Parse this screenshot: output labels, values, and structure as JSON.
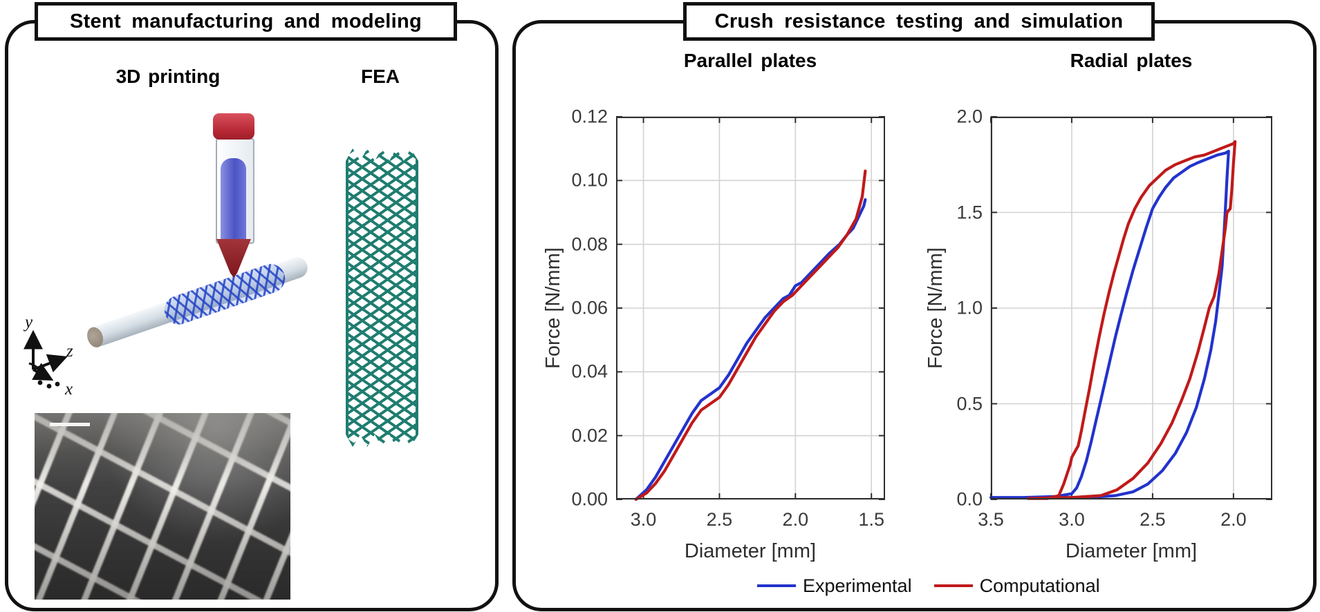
{
  "left_panel": {
    "title": "Stent manufacturing and modeling",
    "printing_heading": "3D printing",
    "fea_heading": "FEA",
    "axis_triad": {
      "x": "x",
      "y": "y",
      "z": "z"
    }
  },
  "right_panel": {
    "title": "Crush resistance testing and simulation"
  },
  "legend": {
    "items": [
      {
        "label": "Experimental",
        "color": "#2333cc"
      },
      {
        "label": "Computational",
        "color": "#c01a1a"
      }
    ]
  },
  "colors": {
    "experimental_blue": "#2333cc",
    "computational_red": "#c01a1a",
    "stent_teal": "#1f7d70",
    "grid_gray": "#d2d2d2",
    "axis_gray": "#2f2f2f",
    "syringe_cap_red": "#c9303c",
    "syringe_nozzle_maroon": "#8e2026",
    "syringe_ink_blue": "#5a62cf",
    "printed_mesh_blue": "#3b5ac6"
  },
  "chart_data": [
    {
      "type": "line",
      "title": "Parallel plates",
      "xlabel": "Diameter [mm]",
      "ylabel": "Force [N/mm]",
      "x_axis_reversed": true,
      "xlim": [
        3.18,
        1.41
      ],
      "ylim": [
        0,
        0.12
      ],
      "xticks": {
        "values": [
          3.0,
          2.5,
          2.0,
          1.5
        ],
        "labels": [
          "3.0",
          "2.5",
          "2.0",
          "1.5"
        ]
      },
      "yticks": {
        "values": [
          0,
          0.02,
          0.04,
          0.06,
          0.08,
          0.1,
          0.12
        ],
        "labels": [
          "0.00",
          "0.02",
          "0.04",
          "0.06",
          "0.08",
          "0.10",
          "0.12"
        ]
      },
      "grid": true,
      "legend_position": "below",
      "series": [
        {
          "name": "Experimental",
          "color": "#2333cc",
          "points": [
            [
              3.05,
              0
            ],
            [
              2.98,
              0.003
            ],
            [
              2.92,
              0.007
            ],
            [
              2.86,
              0.012
            ],
            [
              2.8,
              0.017
            ],
            [
              2.74,
              0.022
            ],
            [
              2.68,
              0.027
            ],
            [
              2.62,
              0.031
            ],
            [
              2.56,
              0.033
            ],
            [
              2.5,
              0.035
            ],
            [
              2.44,
              0.039
            ],
            [
              2.38,
              0.044
            ],
            [
              2.32,
              0.049
            ],
            [
              2.26,
              0.053
            ],
            [
              2.2,
              0.057
            ],
            [
              2.14,
              0.06
            ],
            [
              2.08,
              0.063
            ],
            [
              2.04,
              0.064
            ],
            [
              2.0,
              0.067
            ],
            [
              1.96,
              0.068
            ],
            [
              1.9,
              0.071
            ],
            [
              1.84,
              0.074
            ],
            [
              1.78,
              0.077
            ],
            [
              1.71,
              0.08
            ],
            [
              1.66,
              0.083
            ],
            [
              1.62,
              0.085
            ],
            [
              1.58,
              0.089
            ],
            [
              1.55,
              0.092
            ],
            [
              1.54,
              0.094
            ]
          ]
        },
        {
          "name": "Computational",
          "color": "#c01a1a",
          "points": [
            [
              3.05,
              0
            ],
            [
              2.98,
              0.002
            ],
            [
              2.92,
              0.005
            ],
            [
              2.86,
              0.009
            ],
            [
              2.8,
              0.014
            ],
            [
              2.74,
              0.019
            ],
            [
              2.68,
              0.024
            ],
            [
              2.62,
              0.028
            ],
            [
              2.56,
              0.03
            ],
            [
              2.5,
              0.032
            ],
            [
              2.44,
              0.036
            ],
            [
              2.38,
              0.041
            ],
            [
              2.32,
              0.046
            ],
            [
              2.26,
              0.051
            ],
            [
              2.2,
              0.055
            ],
            [
              2.14,
              0.059
            ],
            [
              2.08,
              0.062
            ],
            [
              2.02,
              0.064
            ],
            [
              1.96,
              0.067
            ],
            [
              1.9,
              0.07
            ],
            [
              1.84,
              0.073
            ],
            [
              1.78,
              0.076
            ],
            [
              1.72,
              0.079
            ],
            [
              1.66,
              0.083
            ],
            [
              1.6,
              0.088
            ],
            [
              1.56,
              0.095
            ],
            [
              1.54,
              0.103
            ]
          ]
        }
      ]
    },
    {
      "type": "line",
      "title": "Radial plates",
      "xlabel": "Diameter [mm]",
      "ylabel": "Force [N/mm]",
      "x_axis_reversed": true,
      "xlim": [
        3.5,
        1.76
      ],
      "ylim": [
        0,
        2.0
      ],
      "xticks": {
        "values": [
          3.5,
          3.0,
          2.5,
          2.0
        ],
        "labels": [
          "3.5",
          "3.0",
          "2.5",
          "2.0"
        ]
      },
      "yticks": {
        "values": [
          0,
          0.5,
          1.0,
          1.5,
          2.0
        ],
        "labels": [
          "0.0",
          "0.5",
          "1.0",
          "1.5",
          "2.0"
        ]
      },
      "grid": true,
      "legend_position": "below",
      "series": [
        {
          "name": "Experimental",
          "color": "#2333cc",
          "points": [
            [
              3.5,
              0.01
            ],
            [
              3.3,
              0.01
            ],
            [
              3.1,
              0.015
            ],
            [
              3.0,
              0.03
            ],
            [
              2.97,
              0.06
            ],
            [
              2.94,
              0.12
            ],
            [
              2.91,
              0.2
            ],
            [
              2.88,
              0.3
            ],
            [
              2.85,
              0.41
            ],
            [
              2.82,
              0.52
            ],
            [
              2.79,
              0.63
            ],
            [
              2.76,
              0.74
            ],
            [
              2.73,
              0.85
            ],
            [
              2.7,
              0.95
            ],
            [
              2.66,
              1.08
            ],
            [
              2.62,
              1.2
            ],
            [
              2.58,
              1.31
            ],
            [
              2.54,
              1.42
            ],
            [
              2.5,
              1.52
            ],
            [
              2.46,
              1.58
            ],
            [
              2.42,
              1.63
            ],
            [
              2.37,
              1.68
            ],
            [
              2.32,
              1.71
            ],
            [
              2.27,
              1.74
            ],
            [
              2.22,
              1.76
            ],
            [
              2.16,
              1.78
            ],
            [
              2.1,
              1.8
            ],
            [
              2.05,
              1.81
            ],
            [
              2.03,
              1.82
            ],
            [
              2.04,
              1.68
            ],
            [
              2.05,
              1.52
            ],
            [
              2.06,
              1.36
            ],
            [
              2.07,
              1.22
            ],
            [
              2.09,
              1.07
            ],
            [
              2.11,
              0.93
            ],
            [
              2.14,
              0.78
            ],
            [
              2.18,
              0.63
            ],
            [
              2.23,
              0.48
            ],
            [
              2.29,
              0.35
            ],
            [
              2.36,
              0.24
            ],
            [
              2.44,
              0.15
            ],
            [
              2.53,
              0.08
            ],
            [
              2.62,
              0.04
            ],
            [
              2.73,
              0.02
            ],
            [
              2.9,
              0.01
            ],
            [
              3.2,
              0.01
            ],
            [
              3.5,
              0.01
            ]
          ]
        },
        {
          "name": "Computational",
          "color": "#c01a1a",
          "points": [
            [
              3.27,
              0.005
            ],
            [
              3.15,
              0.005
            ],
            [
              3.08,
              0.02
            ],
            [
              3.05,
              0.08
            ],
            [
              3.03,
              0.13
            ],
            [
              3.01,
              0.18
            ],
            [
              3.0,
              0.22
            ],
            [
              2.98,
              0.25
            ],
            [
              2.96,
              0.28
            ],
            [
              2.94,
              0.36
            ],
            [
              2.92,
              0.45
            ],
            [
              2.89,
              0.58
            ],
            [
              2.86,
              0.72
            ],
            [
              2.83,
              0.85
            ],
            [
              2.8,
              0.97
            ],
            [
              2.77,
              1.08
            ],
            [
              2.74,
              1.18
            ],
            [
              2.71,
              1.27
            ],
            [
              2.68,
              1.36
            ],
            [
              2.65,
              1.44
            ],
            [
              2.61,
              1.52
            ],
            [
              2.57,
              1.58
            ],
            [
              2.52,
              1.64
            ],
            [
              2.47,
              1.68
            ],
            [
              2.42,
              1.72
            ],
            [
              2.36,
              1.75
            ],
            [
              2.3,
              1.77
            ],
            [
              2.24,
              1.79
            ],
            [
              2.18,
              1.8
            ],
            [
              2.12,
              1.82
            ],
            [
              2.06,
              1.84
            ],
            [
              2.0,
              1.86
            ],
            [
              1.99,
              1.87
            ],
            [
              2.0,
              1.76
            ],
            [
              2.01,
              1.62
            ],
            [
              2.02,
              1.52
            ],
            [
              2.04,
              1.5
            ],
            [
              2.05,
              1.42
            ],
            [
              2.07,
              1.3
            ],
            [
              2.09,
              1.18
            ],
            [
              2.12,
              1.06
            ],
            [
              2.15,
              1.0
            ],
            [
              2.18,
              0.9
            ],
            [
              2.22,
              0.77
            ],
            [
              2.27,
              0.63
            ],
            [
              2.32,
              0.52
            ],
            [
              2.38,
              0.4
            ],
            [
              2.45,
              0.29
            ],
            [
              2.53,
              0.19
            ],
            [
              2.62,
              0.11
            ],
            [
              2.72,
              0.05
            ],
            [
              2.82,
              0.02
            ],
            [
              3.0,
              0.01
            ],
            [
              3.27,
              0.005
            ]
          ]
        }
      ]
    }
  ]
}
